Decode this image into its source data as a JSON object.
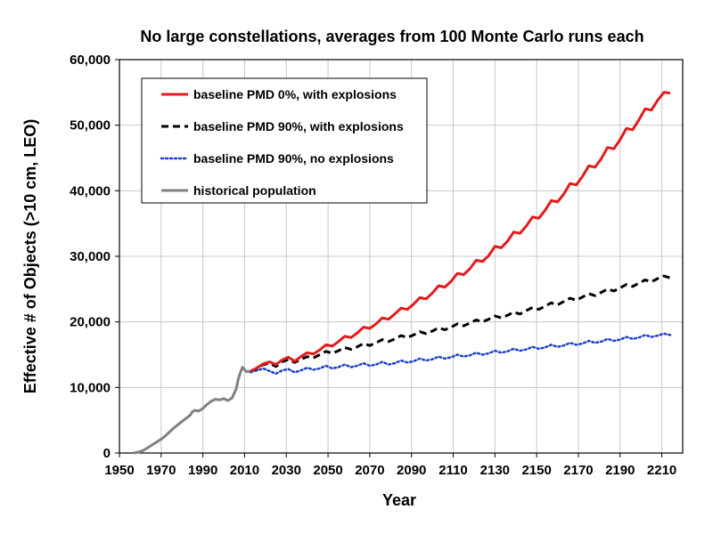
{
  "chart_data": {
    "type": "line",
    "title": "No large constellations, averages from 100 Monte Carlo runs each",
    "xlabel": "Year",
    "ylabel": "Effective # of Objects (>10 cm, LEO)",
    "xlim": [
      1950,
      2220
    ],
    "ylim": [
      0,
      60000
    ],
    "x_ticks": [
      1950,
      1970,
      1990,
      2010,
      2030,
      2050,
      2070,
      2090,
      2110,
      2130,
      2150,
      2170,
      2190,
      2210
    ],
    "y_ticks": [
      0,
      10000,
      20000,
      30000,
      40000,
      50000,
      60000
    ],
    "y_tick_labels": [
      "0",
      "10,000",
      "20,000",
      "30,000",
      "40,000",
      "50,000",
      "60,000"
    ],
    "grid": true,
    "legend_position": "top-left",
    "series": [
      {
        "name": "baseline PMD 0%, with explosions",
        "color": "#e41a1c",
        "style": "solid",
        "points": [
          [
            2013,
            12500
          ],
          [
            2016,
            13000
          ],
          [
            2019,
            13600
          ],
          [
            2022,
            13900
          ],
          [
            2025,
            13500
          ],
          [
            2028,
            14200
          ],
          [
            2031,
            14600
          ],
          [
            2034,
            14000
          ],
          [
            2037,
            14700
          ],
          [
            2040,
            15300
          ],
          [
            2043,
            15100
          ],
          [
            2046,
            15700
          ],
          [
            2049,
            16500
          ],
          [
            2052,
            16300
          ],
          [
            2055,
            17000
          ],
          [
            2058,
            17800
          ],
          [
            2061,
            17600
          ],
          [
            2064,
            18300
          ],
          [
            2067,
            19200
          ],
          [
            2070,
            19000
          ],
          [
            2073,
            19700
          ],
          [
            2076,
            20600
          ],
          [
            2079,
            20400
          ],
          [
            2082,
            21200
          ],
          [
            2085,
            22100
          ],
          [
            2088,
            21900
          ],
          [
            2091,
            22700
          ],
          [
            2094,
            23700
          ],
          [
            2097,
            23500
          ],
          [
            2100,
            24400
          ],
          [
            2103,
            25500
          ],
          [
            2106,
            25300
          ],
          [
            2109,
            26200
          ],
          [
            2112,
            27400
          ],
          [
            2115,
            27200
          ],
          [
            2118,
            28100
          ],
          [
            2121,
            29400
          ],
          [
            2124,
            29200
          ],
          [
            2127,
            30100
          ],
          [
            2130,
            31500
          ],
          [
            2133,
            31300
          ],
          [
            2136,
            32300
          ],
          [
            2139,
            33700
          ],
          [
            2142,
            33500
          ],
          [
            2145,
            34600
          ],
          [
            2148,
            36000
          ],
          [
            2151,
            35800
          ],
          [
            2154,
            37000
          ],
          [
            2157,
            38500
          ],
          [
            2160,
            38300
          ],
          [
            2163,
            39500
          ],
          [
            2166,
            41100
          ],
          [
            2169,
            40900
          ],
          [
            2172,
            42200
          ],
          [
            2175,
            43800
          ],
          [
            2178,
            43600
          ],
          [
            2181,
            44900
          ],
          [
            2184,
            46600
          ],
          [
            2187,
            46400
          ],
          [
            2190,
            47800
          ],
          [
            2193,
            49500
          ],
          [
            2196,
            49300
          ],
          [
            2199,
            50800
          ],
          [
            2202,
            52500
          ],
          [
            2205,
            52300
          ],
          [
            2208,
            53800
          ],
          [
            2211,
            55000
          ],
          [
            2214,
            54900
          ]
        ]
      },
      {
        "name": "baseline PMD 90%, with explosions",
        "color": "#000000",
        "style": "dashed",
        "points": [
          [
            2013,
            12500
          ],
          [
            2016,
            12900
          ],
          [
            2019,
            13500
          ],
          [
            2022,
            13700
          ],
          [
            2025,
            13200
          ],
          [
            2028,
            13900
          ],
          [
            2031,
            14300
          ],
          [
            2034,
            13800
          ],
          [
            2037,
            14300
          ],
          [
            2040,
            14700
          ],
          [
            2043,
            14500
          ],
          [
            2046,
            15000
          ],
          [
            2049,
            15500
          ],
          [
            2052,
            15200
          ],
          [
            2055,
            15600
          ],
          [
            2058,
            16100
          ],
          [
            2061,
            15800
          ],
          [
            2064,
            16200
          ],
          [
            2067,
            16700
          ],
          [
            2070,
            16400
          ],
          [
            2073,
            16800
          ],
          [
            2076,
            17300
          ],
          [
            2079,
            17000
          ],
          [
            2082,
            17400
          ],
          [
            2085,
            17900
          ],
          [
            2088,
            17600
          ],
          [
            2091,
            18000
          ],
          [
            2094,
            18500
          ],
          [
            2097,
            18200
          ],
          [
            2100,
            18600
          ],
          [
            2103,
            19100
          ],
          [
            2106,
            18800
          ],
          [
            2109,
            19200
          ],
          [
            2112,
            19700
          ],
          [
            2115,
            19400
          ],
          [
            2118,
            19800
          ],
          [
            2121,
            20300
          ],
          [
            2124,
            20000
          ],
          [
            2127,
            20400
          ],
          [
            2130,
            20900
          ],
          [
            2133,
            20600
          ],
          [
            2136,
            21000
          ],
          [
            2139,
            21500
          ],
          [
            2142,
            21200
          ],
          [
            2145,
            21700
          ],
          [
            2148,
            22200
          ],
          [
            2151,
            21900
          ],
          [
            2154,
            22400
          ],
          [
            2157,
            22900
          ],
          [
            2160,
            22600
          ],
          [
            2163,
            23100
          ],
          [
            2166,
            23600
          ],
          [
            2169,
            23300
          ],
          [
            2172,
            23800
          ],
          [
            2175,
            24300
          ],
          [
            2178,
            24000
          ],
          [
            2181,
            24500
          ],
          [
            2184,
            25000
          ],
          [
            2187,
            24700
          ],
          [
            2190,
            25200
          ],
          [
            2193,
            25700
          ],
          [
            2196,
            25400
          ],
          [
            2199,
            25900
          ],
          [
            2202,
            26400
          ],
          [
            2205,
            26100
          ],
          [
            2208,
            26600
          ],
          [
            2211,
            27000
          ],
          [
            2214,
            26700
          ]
        ]
      },
      {
        "name": "baseline PMD 90%, no explosions",
        "color": "#1f3fcf",
        "style": "dotted",
        "points": [
          [
            2013,
            12400
          ],
          [
            2016,
            12600
          ],
          [
            2019,
            12900
          ],
          [
            2022,
            12500
          ],
          [
            2025,
            12100
          ],
          [
            2028,
            12600
          ],
          [
            2031,
            12800
          ],
          [
            2034,
            12300
          ],
          [
            2037,
            12600
          ],
          [
            2040,
            13000
          ],
          [
            2043,
            12700
          ],
          [
            2046,
            12900
          ],
          [
            2049,
            13300
          ],
          [
            2052,
            12900
          ],
          [
            2055,
            13100
          ],
          [
            2058,
            13500
          ],
          [
            2061,
            13100
          ],
          [
            2064,
            13300
          ],
          [
            2067,
            13700
          ],
          [
            2070,
            13300
          ],
          [
            2073,
            13500
          ],
          [
            2076,
            13900
          ],
          [
            2079,
            13500
          ],
          [
            2082,
            13700
          ],
          [
            2085,
            14100
          ],
          [
            2088,
            13800
          ],
          [
            2091,
            14000
          ],
          [
            2094,
            14400
          ],
          [
            2097,
            14100
          ],
          [
            2100,
            14300
          ],
          [
            2103,
            14700
          ],
          [
            2106,
            14400
          ],
          [
            2109,
            14600
          ],
          [
            2112,
            15000
          ],
          [
            2115,
            14700
          ],
          [
            2118,
            14900
          ],
          [
            2121,
            15300
          ],
          [
            2124,
            15000
          ],
          [
            2127,
            15200
          ],
          [
            2130,
            15600
          ],
          [
            2133,
            15300
          ],
          [
            2136,
            15500
          ],
          [
            2139,
            15900
          ],
          [
            2142,
            15600
          ],
          [
            2145,
            15800
          ],
          [
            2148,
            16200
          ],
          [
            2151,
            15900
          ],
          [
            2154,
            16100
          ],
          [
            2157,
            16500
          ],
          [
            2160,
            16200
          ],
          [
            2163,
            16400
          ],
          [
            2166,
            16800
          ],
          [
            2169,
            16500
          ],
          [
            2172,
            16700
          ],
          [
            2175,
            17100
          ],
          [
            2178,
            16800
          ],
          [
            2181,
            17000
          ],
          [
            2184,
            17400
          ],
          [
            2187,
            17100
          ],
          [
            2190,
            17300
          ],
          [
            2193,
            17700
          ],
          [
            2196,
            17400
          ],
          [
            2199,
            17600
          ],
          [
            2202,
            18000
          ],
          [
            2205,
            17700
          ],
          [
            2208,
            17900
          ],
          [
            2211,
            18200
          ],
          [
            2214,
            18000
          ]
        ]
      },
      {
        "name": "historical population",
        "color": "#808080",
        "style": "solid",
        "points": [
          [
            1957,
            0
          ],
          [
            1960,
            200
          ],
          [
            1962,
            500
          ],
          [
            1964,
            900
          ],
          [
            1966,
            1300
          ],
          [
            1968,
            1700
          ],
          [
            1970,
            2100
          ],
          [
            1972,
            2600
          ],
          [
            1974,
            3200
          ],
          [
            1976,
            3800
          ],
          [
            1978,
            4300
          ],
          [
            1980,
            4800
          ],
          [
            1982,
            5300
          ],
          [
            1984,
            5800
          ],
          [
            1985,
            6300
          ],
          [
            1986,
            6500
          ],
          [
            1988,
            6400
          ],
          [
            1990,
            6800
          ],
          [
            1992,
            7400
          ],
          [
            1994,
            7900
          ],
          [
            1996,
            8200
          ],
          [
            1998,
            8100
          ],
          [
            2000,
            8300
          ],
          [
            2002,
            8000
          ],
          [
            2004,
            8400
          ],
          [
            2006,
            9800
          ],
          [
            2007,
            11300
          ],
          [
            2008,
            12300
          ],
          [
            2009,
            13100
          ],
          [
            2010,
            12700
          ],
          [
            2011,
            12400
          ],
          [
            2012,
            12500
          ],
          [
            2013,
            12300
          ],
          [
            2014,
            12600
          ]
        ]
      }
    ]
  }
}
